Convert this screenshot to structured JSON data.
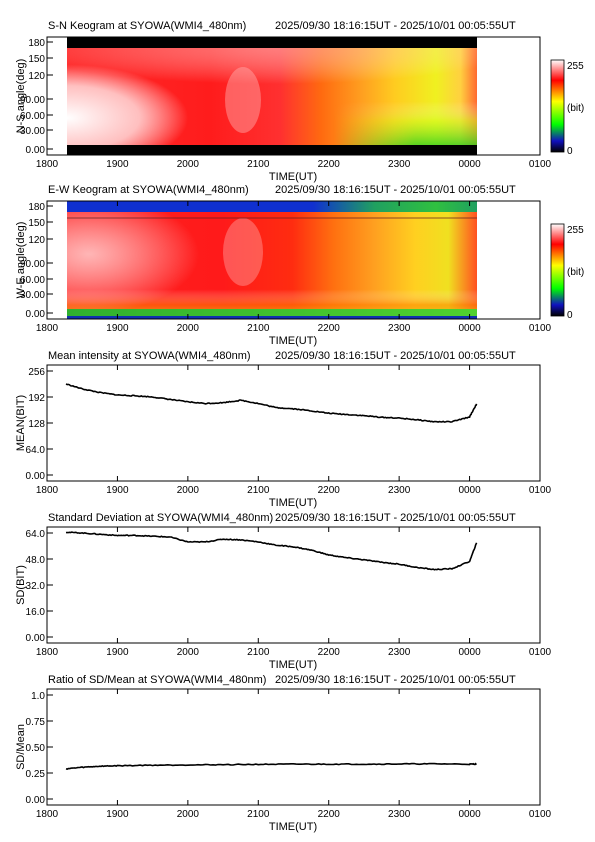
{
  "time_range_text": "2025/09/30 18:16:15UT - 2025/10/01 00:05:55UT",
  "x_tick_labels": [
    "1800",
    "1900",
    "2000",
    "2100",
    "2200",
    "2300",
    "0000",
    "0100"
  ],
  "colorbar": {
    "max_label": "255",
    "mid_label": "(bit)",
    "min_label": "0"
  },
  "chart_data": [
    {
      "type": "heatmap",
      "title": "S-N Keogram at SYOWA(WMI4_480nm)",
      "xlabel": "TIME(UT)",
      "ylabel": "N-S angle(deg)",
      "y_tick_labels": [
        "0.00",
        "30.00",
        "60.00",
        "90.00",
        "120",
        "150",
        "180"
      ],
      "xlim": [
        "18:00",
        "01:00"
      ],
      "ylim": [
        0,
        180
      ],
      "data_range": [
        "18:16:15",
        "00:05:55"
      ],
      "value_range": [
        0,
        255
      ]
    },
    {
      "type": "heatmap",
      "title": "E-W Keogram at SYOWA(WMI4_480nm)",
      "xlabel": "TIME(UT)",
      "ylabel": "W-E angle(deg)",
      "y_tick_labels": [
        "0.00",
        "30.00",
        "60.00",
        "90.00",
        "120",
        "150",
        "180"
      ],
      "xlim": [
        "18:00",
        "01:00"
      ],
      "ylim": [
        0,
        180
      ],
      "data_range": [
        "18:16:15",
        "00:05:55"
      ],
      "value_range": [
        0,
        255
      ]
    },
    {
      "type": "line",
      "title": "Mean intensity at SYOWA(WMI4_480nm)",
      "xlabel": "TIME(UT)",
      "ylabel": "MEAN(BIT)",
      "y_tick_labels": [
        "0.00",
        "64.0",
        "128",
        "192",
        "256"
      ],
      "ylim": [
        0,
        256
      ],
      "x": [
        18.27,
        18.5,
        18.75,
        19.0,
        19.25,
        19.5,
        19.75,
        20.0,
        20.25,
        20.5,
        20.75,
        21.0,
        21.25,
        21.5,
        21.75,
        22.0,
        22.25,
        22.5,
        22.75,
        23.0,
        23.25,
        23.5,
        23.75,
        24.0,
        24.1
      ],
      "y": [
        224,
        212,
        203,
        197,
        195,
        192,
        186,
        180,
        176,
        178,
        184,
        176,
        166,
        163,
        158,
        152,
        149,
        146,
        142,
        140,
        136,
        131,
        131,
        143,
        175
      ]
    },
    {
      "type": "line",
      "title": "Standard Deviation at SYOWA(WMI4_480nm)",
      "xlabel": "TIME(UT)",
      "ylabel": "SD(BIT)",
      "y_tick_labels": [
        "0.00",
        "16.0",
        "32.0",
        "48.0",
        "64.0"
      ],
      "ylim": [
        0,
        64
      ],
      "x": [
        18.27,
        18.5,
        18.75,
        19.0,
        19.25,
        19.5,
        19.75,
        20.0,
        20.25,
        20.5,
        20.75,
        21.0,
        21.25,
        21.5,
        21.75,
        22.0,
        22.25,
        22.5,
        22.75,
        23.0,
        23.25,
        23.5,
        23.75,
        24.0,
        24.1
      ],
      "y": [
        64.5,
        64.0,
        63.2,
        62.5,
        62.5,
        62.0,
        61.5,
        58.5,
        58.5,
        60.2,
        59.8,
        58.5,
        56.5,
        55.5,
        53.5,
        50.5,
        48.8,
        47.5,
        46.0,
        44.8,
        42.8,
        41.5,
        42.0,
        46.5,
        58.0
      ]
    },
    {
      "type": "line",
      "title": "Ratio of SD/Mean at SYOWA(WMI4_480nm)",
      "xlabel": "TIME(UT)",
      "ylabel": "SD/Mean",
      "y_tick_labels": [
        "0.00",
        "0.25",
        "0.50",
        "0.75",
        "1.0"
      ],
      "ylim": [
        0,
        1
      ],
      "x": [
        18.27,
        18.5,
        18.75,
        19.0,
        19.5,
        20.0,
        20.5,
        21.0,
        21.5,
        22.0,
        22.5,
        23.0,
        23.5,
        24.0,
        24.1
      ],
      "y": [
        0.29,
        0.305,
        0.315,
        0.32,
        0.325,
        0.328,
        0.33,
        0.333,
        0.335,
        0.335,
        0.335,
        0.337,
        0.338,
        0.335,
        0.337
      ]
    }
  ]
}
